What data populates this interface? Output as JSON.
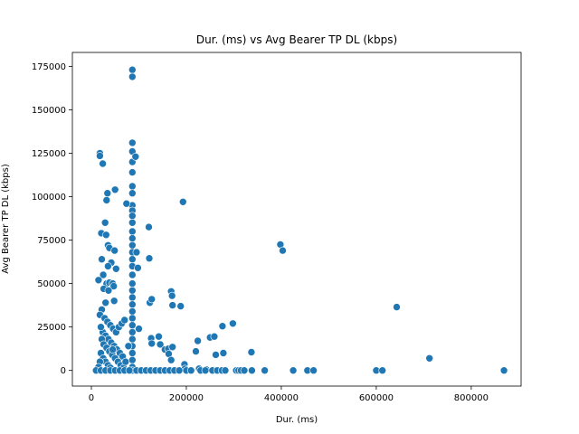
{
  "chart_data": {
    "type": "scatter",
    "title": "Dur. (ms) vs Avg Bearer TP DL (kbps)",
    "xlabel": "Dur. (ms)",
    "ylabel": "Avg Bearer TP DL (kbps)",
    "xlim": [
      -40000,
      905000
    ],
    "ylim": [
      -9000,
      183000
    ],
    "xticks": [
      0,
      200000,
      400000,
      600000,
      800000
    ],
    "xtick_labels": [
      "0",
      "200000",
      "400000",
      "600000",
      "800000"
    ],
    "yticks": [
      0,
      25000,
      50000,
      75000,
      100000,
      125000,
      150000,
      175000
    ],
    "ytick_labels": [
      "0",
      "25000",
      "50000",
      "75000",
      "100000",
      "125000",
      "150000",
      "175000"
    ],
    "grid": false,
    "legend": "none",
    "point_color": "#1f77b4",
    "edge_color": "#ffffff",
    "points": [
      [
        86400,
        173000
      ],
      [
        86400,
        169000
      ],
      [
        86400,
        131000
      ],
      [
        86400,
        126000
      ],
      [
        86400,
        120000
      ],
      [
        86400,
        114000
      ],
      [
        86400,
        106000
      ],
      [
        86400,
        102000
      ],
      [
        86400,
        95000
      ],
      [
        86400,
        92000
      ],
      [
        86400,
        89000
      ],
      [
        86400,
        85000
      ],
      [
        86400,
        80000
      ],
      [
        86400,
        76000
      ],
      [
        86400,
        72000
      ],
      [
        86400,
        68000
      ],
      [
        86400,
        64000
      ],
      [
        86400,
        60000
      ],
      [
        86400,
        55000
      ],
      [
        86400,
        50000
      ],
      [
        86400,
        46000
      ],
      [
        86400,
        42000
      ],
      [
        86400,
        38000
      ],
      [
        86400,
        34000
      ],
      [
        86400,
        30000
      ],
      [
        86400,
        26000
      ],
      [
        86400,
        22000
      ],
      [
        86400,
        18000
      ],
      [
        86400,
        14000
      ],
      [
        86400,
        10000
      ],
      [
        86400,
        6000
      ],
      [
        86400,
        2000
      ],
      [
        86400,
        0
      ],
      [
        18000,
        125000
      ],
      [
        18000,
        123500
      ],
      [
        24000,
        119000
      ],
      [
        34000,
        102000
      ],
      [
        32000,
        98000
      ],
      [
        50000,
        104000
      ],
      [
        93000,
        123000
      ],
      [
        74000,
        96000
      ],
      [
        95000,
        68000
      ],
      [
        98000,
        59000
      ],
      [
        121000,
        82500
      ],
      [
        193000,
        97000
      ],
      [
        122000,
        64500
      ],
      [
        29000,
        85000
      ],
      [
        21000,
        79000
      ],
      [
        31000,
        78000
      ],
      [
        35000,
        72000
      ],
      [
        38000,
        70500
      ],
      [
        49000,
        69000
      ],
      [
        42000,
        62000
      ],
      [
        35000,
        60000
      ],
      [
        52000,
        58500
      ],
      [
        22000,
        64000
      ],
      [
        25000,
        55000
      ],
      [
        15000,
        52000
      ],
      [
        32000,
        50000
      ],
      [
        38000,
        50500
      ],
      [
        45000,
        50000
      ],
      [
        47000,
        48500
      ],
      [
        26000,
        47000
      ],
      [
        36000,
        46000
      ],
      [
        48000,
        40000
      ],
      [
        30000,
        39000
      ],
      [
        22000,
        35000
      ],
      [
        18000,
        32000
      ],
      [
        28000,
        30000
      ],
      [
        34000,
        28000
      ],
      [
        40000,
        26000
      ],
      [
        46000,
        24000
      ],
      [
        52000,
        22000
      ],
      [
        58000,
        25000
      ],
      [
        64000,
        27000
      ],
      [
        70000,
        29000
      ],
      [
        24000,
        22000
      ],
      [
        30000,
        20000
      ],
      [
        36000,
        18000
      ],
      [
        42000,
        16000
      ],
      [
        48000,
        14000
      ],
      [
        54000,
        12000
      ],
      [
        60000,
        10000
      ],
      [
        66000,
        8000
      ],
      [
        22000,
        18000
      ],
      [
        26000,
        15000
      ],
      [
        32000,
        13000
      ],
      [
        38000,
        11000
      ],
      [
        44000,
        9000
      ],
      [
        50000,
        7000
      ],
      [
        56000,
        5000
      ],
      [
        62000,
        3000
      ],
      [
        68000,
        1500
      ],
      [
        20000,
        10000
      ],
      [
        25000,
        7000
      ],
      [
        30000,
        5000
      ],
      [
        35000,
        3000
      ],
      [
        40000,
        1500
      ],
      [
        45000,
        12000
      ],
      [
        18000,
        5000
      ],
      [
        15000,
        2000
      ],
      [
        20000,
        25000
      ],
      [
        72000,
        5000
      ],
      [
        78000,
        14000
      ],
      [
        100000,
        24000
      ],
      [
        123000,
        39000
      ],
      [
        127000,
        41000
      ],
      [
        168000,
        45500
      ],
      [
        170000,
        43000
      ],
      [
        171000,
        37500
      ],
      [
        188000,
        37000
      ],
      [
        142000,
        19500
      ],
      [
        126000,
        18500
      ],
      [
        127000,
        15500
      ],
      [
        145000,
        15000
      ],
      [
        155000,
        12000
      ],
      [
        162000,
        12500
      ],
      [
        171000,
        13500
      ],
      [
        163000,
        9500
      ],
      [
        168000,
        6000
      ],
      [
        196000,
        3500
      ],
      [
        220000,
        11000
      ],
      [
        224000,
        17000
      ],
      [
        250000,
        19000
      ],
      [
        259000,
        19500
      ],
      [
        262000,
        9000
      ],
      [
        276000,
        25500
      ],
      [
        278000,
        10000
      ],
      [
        298000,
        27000
      ],
      [
        337000,
        10500
      ],
      [
        197000,
        1000
      ],
      [
        227000,
        1000
      ],
      [
        242000,
        500
      ],
      [
        398000,
        72500
      ],
      [
        403000,
        69000
      ],
      [
        643000,
        36500
      ],
      [
        712000,
        7000
      ],
      [
        869000,
        0
      ],
      [
        10000,
        0
      ],
      [
        20000,
        0
      ],
      [
        30000,
        0
      ],
      [
        40000,
        0
      ],
      [
        50000,
        0
      ],
      [
        60000,
        0
      ],
      [
        70000,
        0
      ],
      [
        80000,
        0
      ],
      [
        95000,
        0
      ],
      [
        105000,
        0
      ],
      [
        115000,
        0
      ],
      [
        125000,
        0
      ],
      [
        135000,
        0
      ],
      [
        145000,
        0
      ],
      [
        155000,
        0
      ],
      [
        165000,
        0
      ],
      [
        175000,
        0
      ],
      [
        185000,
        0
      ],
      [
        200000,
        0
      ],
      [
        210000,
        0
      ],
      [
        230000,
        0
      ],
      [
        240000,
        0
      ],
      [
        255000,
        0
      ],
      [
        265000,
        0
      ],
      [
        275000,
        0
      ],
      [
        282000,
        0
      ],
      [
        305000,
        0
      ],
      [
        310000,
        0
      ],
      [
        315000,
        0
      ],
      [
        322000,
        0
      ],
      [
        338000,
        0
      ],
      [
        365000,
        0
      ],
      [
        425000,
        0
      ],
      [
        455000,
        0
      ],
      [
        468000,
        0
      ],
      [
        600000,
        0
      ],
      [
        613000,
        0
      ]
    ]
  }
}
